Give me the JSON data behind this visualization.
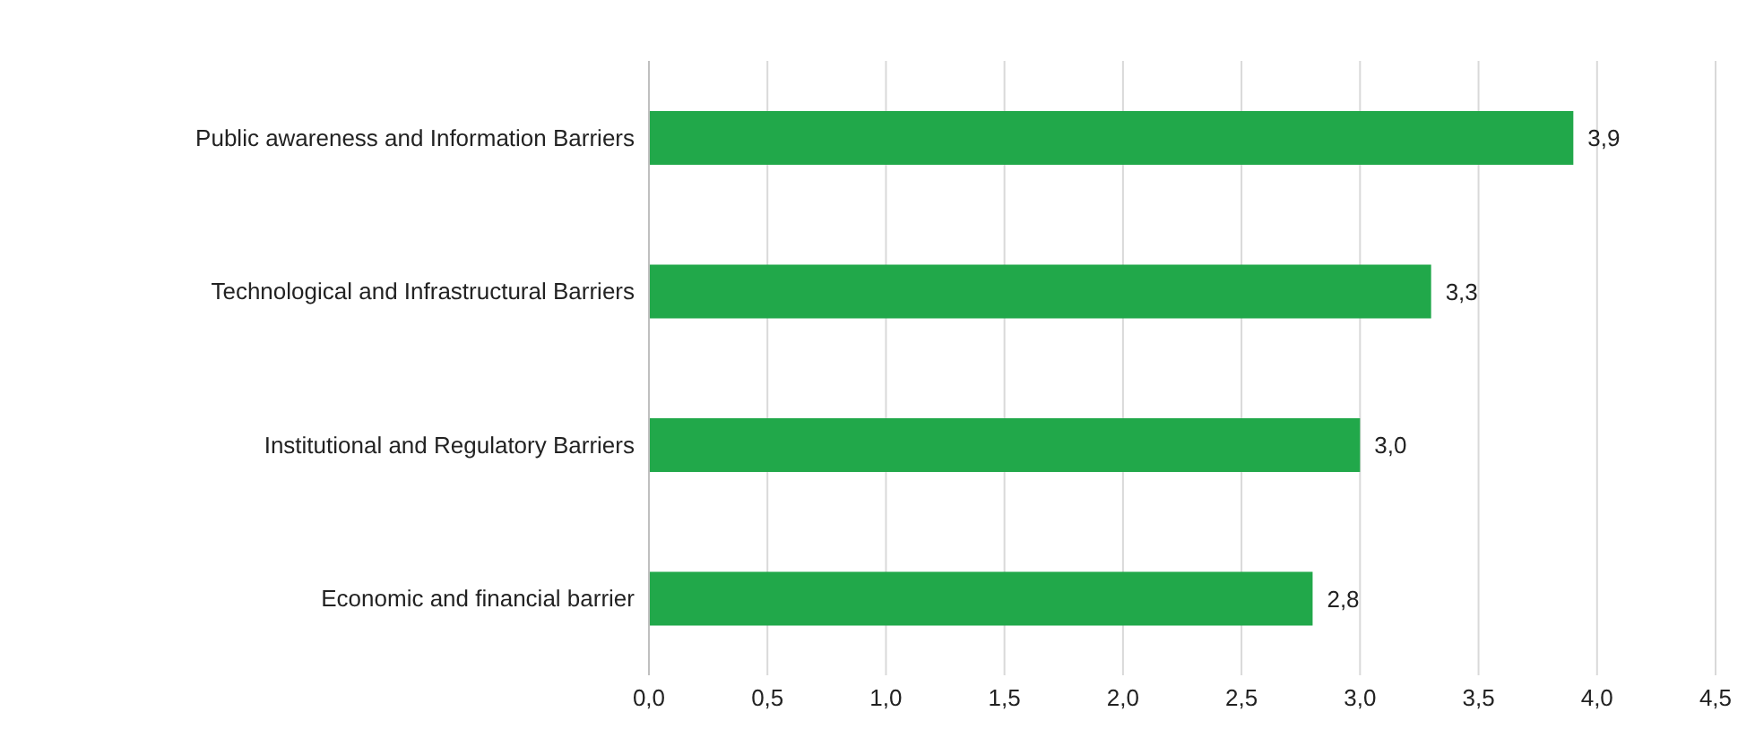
{
  "chart_data": {
    "type": "bar",
    "orientation": "horizontal",
    "categories": [
      "Public awareness and Information Barriers",
      "Technological and Infrastructural Barriers",
      "Institutional and Regulatory Barriers",
      "Economic and financial barrier"
    ],
    "values": [
      3.9,
      3.3,
      3.0,
      2.8
    ],
    "value_labels": [
      "3,9",
      "3,3",
      "3,0",
      "2,8"
    ],
    "color": "#21a84a",
    "xlim": [
      0,
      4.5
    ],
    "xticks": [
      {
        "value": 0,
        "label": "0,0"
      },
      {
        "value": 0.5,
        "label": "0,5"
      },
      {
        "value": 1,
        "label": "1,0"
      },
      {
        "value": 1.5,
        "label": "1,5"
      },
      {
        "value": 2,
        "label": "2,0"
      },
      {
        "value": 2.5,
        "label": "2,5"
      },
      {
        "value": 3,
        "label": "3,0"
      },
      {
        "value": 3.5,
        "label": "3,5"
      },
      {
        "value": 4,
        "label": "4,0"
      },
      {
        "value": 4.5,
        "label": "4,5"
      }
    ],
    "grid": "x"
  }
}
